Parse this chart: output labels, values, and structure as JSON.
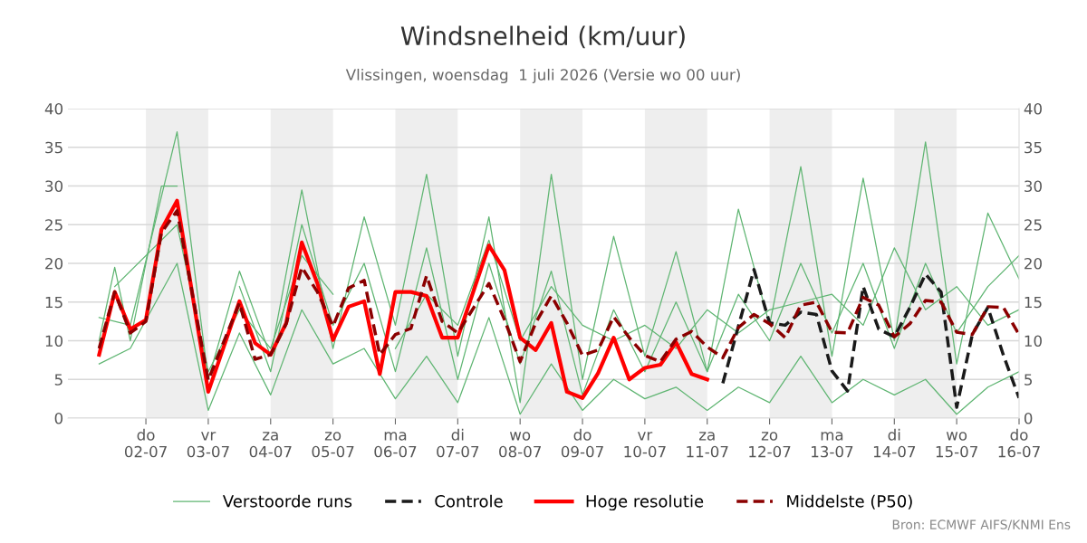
{
  "chart_data": {
    "type": "line",
    "title": "Windsnelheid (km/uur)",
    "subtitle": "Vlissingen, woensdag  1 juli 2026 (Versie wo 00 uur)",
    "annotations": [
      "Bron: ECMWF AIFS/KNMI Ens"
    ],
    "xlim": [
      "2026-06-30T18:00",
      "2026-07-16T00:00"
    ],
    "xticks": [
      {
        "value": "2026-07-02",
        "label": "do\n02-07"
      },
      {
        "value": "2026-07-03",
        "label": "vr\n03-07"
      },
      {
        "value": "2026-07-04",
        "label": "za\n04-07"
      },
      {
        "value": "2026-07-05",
        "label": "zo\n05-07"
      },
      {
        "value": "2026-07-06",
        "label": "ma\n06-07"
      },
      {
        "value": "2026-07-07",
        "label": "di\n07-07"
      },
      {
        "value": "2026-07-08",
        "label": "wo\n08-07"
      },
      {
        "value": "2026-07-09",
        "label": "do\n09-07"
      },
      {
        "value": "2026-07-10",
        "label": "vr\n10-07"
      },
      {
        "value": "2026-07-11",
        "label": "za\n11-07"
      },
      {
        "value": "2026-07-12",
        "label": "zo\n12-07"
      },
      {
        "value": "2026-07-13",
        "label": "ma\n13-07"
      },
      {
        "value": "2026-07-14",
        "label": "di\n14-07"
      },
      {
        "value": "2026-07-15",
        "label": "wo\n15-07"
      },
      {
        "value": "2026-07-16",
        "label": "do\n16-07"
      }
    ],
    "ylim": [
      0,
      40
    ],
    "yticks": [
      0,
      5,
      10,
      15,
      20,
      25,
      30,
      35,
      40
    ],
    "y2lim": [
      0,
      40
    ],
    "y2ticks": [
      0,
      5,
      10,
      15,
      20,
      25,
      30,
      35,
      40
    ],
    "grid": "y",
    "legend": "bottom",
    "marker": "none",
    "bands": [
      {
        "axis": "x",
        "from": "2026-07-02",
        "to": "2026-07-03",
        "color": "#eeeeee"
      },
      {
        "axis": "x",
        "from": "2026-07-04",
        "to": "2026-07-05",
        "color": "#eeeeee"
      },
      {
        "axis": "x",
        "from": "2026-07-06",
        "to": "2026-07-07",
        "color": "#eeeeee"
      },
      {
        "axis": "x",
        "from": "2026-07-08",
        "to": "2026-07-09",
        "color": "#eeeeee"
      },
      {
        "axis": "x",
        "from": "2026-07-10",
        "to": "2026-07-11",
        "color": "#eeeeee"
      },
      {
        "axis": "x",
        "from": "2026-07-12",
        "to": "2026-07-13",
        "color": "#eeeeee"
      },
      {
        "axis": "x",
        "from": "2026-07-14",
        "to": "2026-07-15",
        "color": "#eeeeee"
      }
    ],
    "series": [
      {
        "name": "Verstoorde runs",
        "color": "#5fb572",
        "line_style": "solid",
        "x": [
          "2026-07-01T06:00",
          "2026-07-01T18:00",
          "2026-07-02T12:00",
          "2026-07-03T00:00",
          "2026-07-03T12:00",
          "2026-07-04T00:00",
          "2026-07-04T12:00",
          "2026-07-05T00:00",
          "2026-07-05T12:00",
          "2026-07-06T00:00",
          "2026-07-06T12:00",
          "2026-07-07T00:00",
          "2026-07-07T12:00",
          "2026-07-08T00:00",
          "2026-07-08T12:00",
          "2026-07-09T00:00",
          "2026-07-09T12:00",
          "2026-07-10T00:00",
          "2026-07-10T12:00",
          "2026-07-11T00:00",
          "2026-07-11T12:00",
          "2026-07-12T00:00",
          "2026-07-12T12:00",
          "2026-07-13T00:00",
          "2026-07-13T12:00",
          "2026-07-14T00:00",
          "2026-07-14T12:00",
          "2026-07-15T00:00",
          "2026-07-15T12:00",
          "2026-07-16T00:00"
        ],
        "values": [
          13,
          12,
          37,
          5,
          19,
          8,
          29.5,
          9,
          26,
          12,
          31.5,
          8,
          26,
          2,
          31.5,
          5,
          23.5,
          8,
          21.5,
          6,
          27,
          12,
          32.5,
          8,
          31,
          10,
          35.7,
          7,
          26.5,
          18
        ]
      },
      {
        "color": "#5fb572",
        "line_style": "solid",
        "x": [
          "2026-07-01T06:00",
          "2026-07-01T18:00",
          "2026-07-02T12:00",
          "2026-07-03T00:00",
          "2026-07-03T12:00",
          "2026-07-04T00:00",
          "2026-07-04T12:00",
          "2026-07-05T00:00",
          "2026-07-05T12:00",
          "2026-07-06T00:00",
          "2026-07-06T12:00",
          "2026-07-07T00:00",
          "2026-07-07T12:00",
          "2026-07-08T00:00",
          "2026-07-08T12:00",
          "2026-07-09T00:00",
          "2026-07-09T12:00",
          "2026-07-10T00:00",
          "2026-07-10T12:00",
          "2026-07-11T00:00",
          "2026-07-11T12:00",
          "2026-07-12T00:00",
          "2026-07-12T12:00",
          "2026-07-13T00:00",
          "2026-07-13T12:00",
          "2026-07-14T00:00",
          "2026-07-14T12:00",
          "2026-07-15T00:00",
          "2026-07-15T12:00",
          "2026-07-16T00:00"
        ],
        "values": [
          7,
          9,
          20,
          1,
          11,
          3,
          14,
          7,
          9,
          2.5,
          8,
          2,
          13,
          0.5,
          7,
          1,
          5,
          2.5,
          4,
          1,
          4,
          2,
          8,
          2,
          5,
          3,
          5,
          0.5,
          4,
          6
        ]
      },
      {
        "color": "#5fb572",
        "line_style": "solid",
        "x": [
          "2026-07-01T06:00",
          "2026-07-01T12:00",
          "2026-07-01T18:00",
          "2026-07-02T06:00",
          "2026-07-02T12:00",
          "2026-07-03T00:00",
          "2026-07-03T12:00",
          "2026-07-04T00:00",
          "2026-07-04T12:00",
          "2026-07-05T00:00",
          "2026-07-05T12:00",
          "2026-07-06T00:00",
          "2026-07-06T12:00",
          "2026-07-07T00:00",
          "2026-07-07T12:00",
          "2026-07-08T00:00",
          "2026-07-08T12:00",
          "2026-07-09T00:00",
          "2026-07-09T12:00",
          "2026-07-10T00:00",
          "2026-07-10T12:00",
          "2026-07-11T00:00",
          "2026-07-11T12:00",
          "2026-07-12T00:00",
          "2026-07-12T12:00",
          "2026-07-13T00:00",
          "2026-07-13T12:00",
          "2026-07-14T00:00",
          "2026-07-14T12:00",
          "2026-07-15T00:00",
          "2026-07-15T12:00",
          "2026-07-16T00:00"
        ],
        "values": [
          10,
          19.5,
          10,
          30,
          30,
          null,
          17,
          6,
          25,
          12,
          20,
          6,
          22,
          5,
          20,
          7,
          19,
          3,
          14,
          6,
          15,
          6,
          16,
          10,
          20,
          11,
          20,
          9,
          20,
          11,
          17,
          21
        ]
      },
      {
        "color": "#5fb572",
        "line_style": "solid",
        "x": [
          "2026-07-01T12:00",
          "2026-07-02T12:00",
          "2026-07-03T00:00",
          "2026-07-03T12:00",
          "2026-07-04T00:00",
          "2026-07-04T12:00",
          "2026-07-05T00:00",
          "2026-07-05T12:00",
          "2026-07-06T00:00",
          "2026-07-06T12:00",
          "2026-07-07T00:00",
          "2026-07-07T12:00",
          "2026-07-08T00:00",
          "2026-07-08T12:00",
          "2026-07-09T00:00",
          "2026-07-09T12:00",
          "2026-07-10T00:00",
          "2026-07-10T12:00",
          "2026-07-11T00:00",
          "2026-07-11T12:00",
          "2026-07-12T00:00",
          "2026-07-12T12:00",
          "2026-07-13T00:00",
          "2026-07-13T12:00",
          "2026-07-14T00:00",
          "2026-07-14T12:00",
          "2026-07-15T00:00",
          "2026-07-15T12:00",
          "2026-07-16T00:00"
        ],
        "values": [
          17,
          25,
          6,
          14,
          9,
          21,
          16,
          null,
          9,
          16,
          12,
          23,
          10,
          17,
          12,
          10,
          12,
          9,
          14,
          11,
          14,
          15,
          16,
          12,
          22,
          14,
          17,
          12,
          14
        ]
      },
      {
        "name": "Controle",
        "color": "#1a1a1a",
        "line_style": "dashed",
        "x": [
          "2026-07-11T06:00",
          "2026-07-11T18:00",
          "2026-07-12T00:00",
          "2026-07-12T06:00",
          "2026-07-12T12:00",
          "2026-07-12T18:00",
          "2026-07-13T00:00",
          "2026-07-13T06:00",
          "2026-07-13T12:00",
          "2026-07-13T18:00",
          "2026-07-14T00:00",
          "2026-07-14T06:00",
          "2026-07-14T12:00",
          "2026-07-14T18:00",
          "2026-07-15T00:00",
          "2026-07-15T06:00",
          "2026-07-15T12:00",
          "2026-07-15T18:00",
          "2026-07-16T00:00"
        ],
        "values": [
          4.5,
          19.2,
          12.3,
          12.0,
          13.7,
          13.4,
          6.1,
          3.5,
          17.0,
          11.5,
          10.5,
          14.3,
          18.6,
          16.3,
          1.4,
          10.8,
          14.3,
          8.1,
          2.6
        ]
      },
      {
        "name": "Hoge resolutie",
        "color": "#ff0000",
        "line_style": "solid",
        "x": [
          "2026-07-01T06:00",
          "2026-07-01T12:00",
          "2026-07-01T18:00",
          "2026-07-02T00:00",
          "2026-07-02T06:00",
          "2026-07-02T12:00",
          "2026-07-03T00:00",
          "2026-07-03T12:00",
          "2026-07-03T18:00",
          "2026-07-04T00:00",
          "2026-07-04T06:00",
          "2026-07-04T12:00",
          "2026-07-04T18:00",
          "2026-07-05T00:00",
          "2026-07-05T06:00",
          "2026-07-05T12:00",
          "2026-07-05T18:00",
          "2026-07-06T00:00",
          "2026-07-06T06:00",
          "2026-07-06T12:00",
          "2026-07-06T18:00",
          "2026-07-07T00:00",
          "2026-07-07T12:00",
          "2026-07-07T18:00",
          "2026-07-08T00:00",
          "2026-07-08T06:00",
          "2026-07-08T12:00",
          "2026-07-08T18:00",
          "2026-07-09T00:00",
          "2026-07-09T06:00",
          "2026-07-09T12:00",
          "2026-07-09T18:00",
          "2026-07-10T00:00",
          "2026-07-10T06:00",
          "2026-07-10T12:00",
          "2026-07-10T18:00",
          "2026-07-11T00:00"
        ],
        "values": [
          8.2,
          16.3,
          11.5,
          12.7,
          24.4,
          28.1,
          3.4,
          15.1,
          9.7,
          8.2,
          12.3,
          22.7,
          17.4,
          10.1,
          14.4,
          15.1,
          5.7,
          16.3,
          16.3,
          15.8,
          10.4,
          10.4,
          22.3,
          19.1,
          10.4,
          8.8,
          12.3,
          3.4,
          2.6,
          5.8,
          10.4,
          5.0,
          6.5,
          6.9,
          9.8,
          5.7,
          5.0
        ]
      },
      {
        "name": "Middelste (P50)",
        "color": "#8b0000",
        "line_style": "dashed",
        "x": [
          "2026-07-01T06:00",
          "2026-07-01T12:00",
          "2026-07-01T18:00",
          "2026-07-02T00:00",
          "2026-07-02T06:00",
          "2026-07-02T12:00",
          "2026-07-03T00:00",
          "2026-07-03T12:00",
          "2026-07-03T18:00",
          "2026-07-04T00:00",
          "2026-07-04T06:00",
          "2026-07-04T12:00",
          "2026-07-04T18:00",
          "2026-07-05T00:00",
          "2026-07-05T06:00",
          "2026-07-05T12:00",
          "2026-07-05T18:00",
          "2026-07-06T00:00",
          "2026-07-06T06:00",
          "2026-07-06T12:00",
          "2026-07-06T18:00",
          "2026-07-07T00:00",
          "2026-07-07T12:00",
          "2026-07-07T18:00",
          "2026-07-08T00:00",
          "2026-07-08T06:00",
          "2026-07-08T12:00",
          "2026-07-08T18:00",
          "2026-07-09T00:00",
          "2026-07-09T06:00",
          "2026-07-09T12:00",
          "2026-07-09T18:00",
          "2026-07-10T00:00",
          "2026-07-10T06:00",
          "2026-07-10T12:00",
          "2026-07-10T18:00",
          "2026-07-11T00:00",
          "2026-07-11T06:00",
          "2026-07-11T12:00",
          "2026-07-11T18:00",
          "2026-07-12T00:00",
          "2026-07-12T06:00",
          "2026-07-12T12:00",
          "2026-07-12T18:00",
          "2026-07-13T00:00",
          "2026-07-13T06:00",
          "2026-07-13T12:00",
          "2026-07-13T18:00",
          "2026-07-14T00:00",
          "2026-07-14T06:00",
          "2026-07-14T12:00",
          "2026-07-14T18:00",
          "2026-07-15T00:00",
          "2026-07-15T06:00",
          "2026-07-15T12:00",
          "2026-07-15T18:00",
          "2026-07-16T00:00"
        ],
        "values": [
          9.0,
          16.3,
          11.0,
          12.5,
          24.0,
          26.8,
          4.9,
          14.9,
          7.6,
          8.2,
          12.2,
          19.5,
          16.3,
          11.9,
          16.8,
          17.8,
          8.2,
          10.8,
          11.6,
          18.4,
          12.5,
          11.0,
          17.4,
          12.7,
          7.3,
          12.3,
          15.8,
          12.3,
          8.1,
          8.8,
          13.1,
          10.4,
          8.1,
          7.3,
          10.2,
          11.2,
          9.2,
          7.8,
          11.7,
          13.4,
          12.2,
          10.4,
          14.6,
          15.0,
          11.1,
          11.0,
          15.6,
          14.6,
          10.5,
          12.2,
          15.2,
          15.0,
          11.1,
          10.8,
          14.4,
          14.3,
          10.8
        ]
      }
    ]
  }
}
